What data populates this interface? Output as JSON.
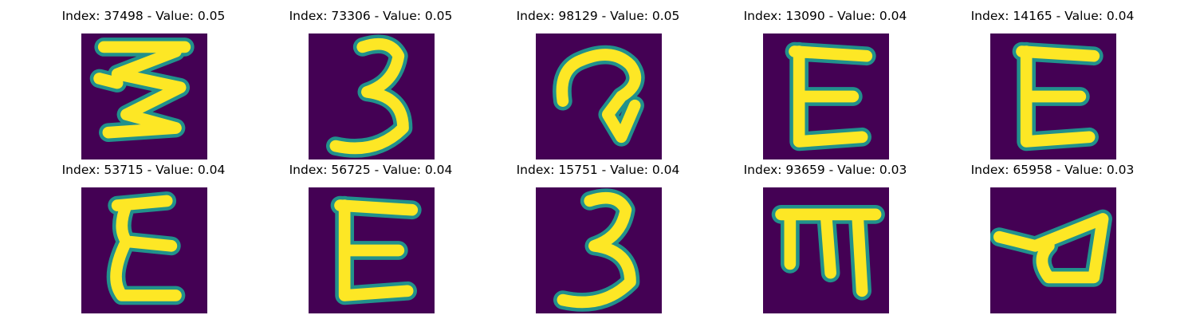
{
  "colors": {
    "background": "#440154",
    "stroke": "#fde725",
    "edge": "#21918c"
  },
  "images": [
    {
      "title": "Index: 37498 - Value: 0.05",
      "glyph": "zigzag-digit"
    },
    {
      "title": "Index: 73306 - Value: 0.05",
      "glyph": "digit-3"
    },
    {
      "title": "Index: 98129 - Value: 0.05",
      "glyph": "hook-glyph"
    },
    {
      "title": "Index: 13090 - Value: 0.04",
      "glyph": "letter-E"
    },
    {
      "title": "Index: 14165 - Value: 0.04",
      "glyph": "letter-E"
    },
    {
      "title": "Index: 53715 - Value: 0.04",
      "glyph": "epsilon-glyph"
    },
    {
      "title": "Index: 56725 - Value: 0.04",
      "glyph": "letter-E"
    },
    {
      "title": "Index: 15751 - Value: 0.04",
      "glyph": "digit-3"
    },
    {
      "title": "Index: 93659 - Value: 0.03",
      "glyph": "m-glyph"
    },
    {
      "title": "Index: 65958 - Value: 0.03",
      "glyph": "loop-glyph"
    }
  ]
}
